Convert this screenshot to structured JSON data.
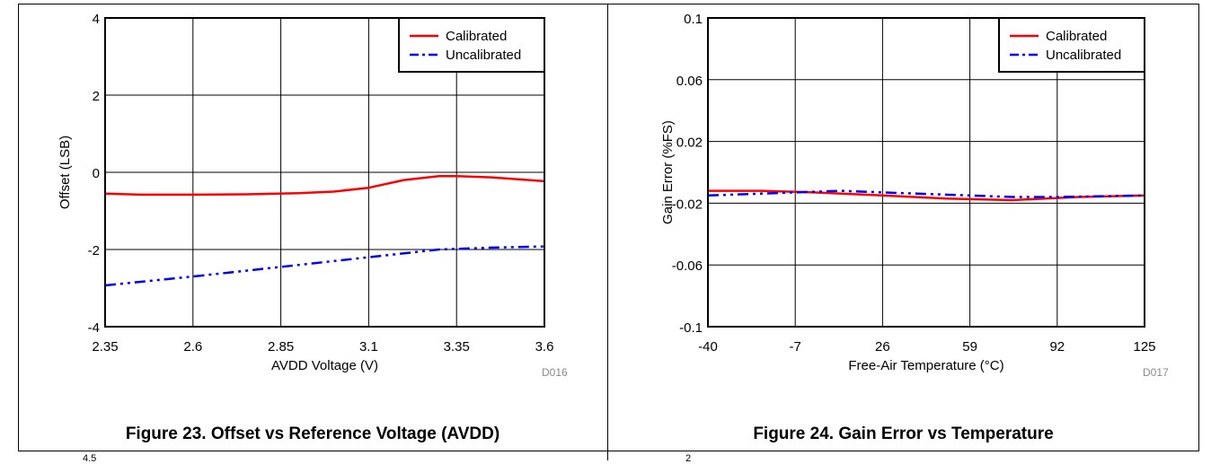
{
  "charts": [
    {
      "code": "D016",
      "caption": "Figure 23. Offset vs Reference Voltage (AVDD)",
      "legend_placement": "top-right",
      "chart_data": {
        "type": "line",
        "xlabel": "AVDD Voltage (V)",
        "ylabel": "Offset (LSB)",
        "xlim": [
          2.35,
          3.6
        ],
        "ylim": [
          -4,
          4
        ],
        "xticks": [
          "2.35",
          "2.6",
          "2.85",
          "3.1",
          "3.35",
          "3.6"
        ],
        "yticks": [
          "-4",
          "-2",
          "0",
          "2",
          "4"
        ],
        "grid": true,
        "series": [
          {
            "name": "Calibrated",
            "color": "#ff0000",
            "style": "solid",
            "x": [
              2.35,
              2.45,
              2.6,
              2.75,
              2.9,
              3.0,
              3.1,
              3.2,
              3.3,
              3.35,
              3.45,
              3.6
            ],
            "y": [
              -0.55,
              -0.58,
              -0.58,
              -0.57,
              -0.54,
              -0.5,
              -0.4,
              -0.2,
              -0.1,
              -0.1,
              -0.13,
              -0.23
            ]
          },
          {
            "name": "Uncalibrated",
            "color": "#0000ff",
            "style": "dashdot",
            "x": [
              2.35,
              2.6,
              2.85,
              3.1,
              3.3,
              3.45,
              3.6
            ],
            "y": [
              -2.93,
              -2.7,
              -2.45,
              -2.2,
              -2.0,
              -1.95,
              -1.92
            ]
          }
        ]
      }
    },
    {
      "code": "D017",
      "caption": "Figure 24. Gain Error vs Temperature",
      "legend_placement": "top-right",
      "chart_data": {
        "type": "line",
        "xlabel": "Free-Air Temperature (°C)",
        "ylabel": "Gain Error (%FS)",
        "xlim": [
          -40,
          125
        ],
        "ylim": [
          -0.1,
          0.1
        ],
        "xticks": [
          "-40",
          "-7",
          "26",
          "59",
          "92",
          "125"
        ],
        "yticks": [
          "-0.1",
          "-0.06",
          "-0.02",
          "0.02",
          "0.06",
          "0.1"
        ],
        "grid": true,
        "series": [
          {
            "name": "Calibrated",
            "color": "#ff0000",
            "style": "solid",
            "x": [
              -40,
              -20,
              0,
              26,
              50,
              75,
              100,
              125
            ],
            "y": [
              -0.012,
              -0.012,
              -0.013,
              -0.015,
              -0.017,
              -0.018,
              -0.016,
              -0.015
            ]
          },
          {
            "name": "Uncalibrated",
            "color": "#0000ff",
            "style": "dashdot",
            "x": [
              -40,
              -7,
              10,
              26,
              59,
              75,
              92,
              125
            ],
            "y": [
              -0.015,
              -0.013,
              -0.012,
              -0.013,
              -0.015,
              -0.016,
              -0.016,
              -0.015
            ]
          }
        ]
      }
    }
  ],
  "bottom_fragments": [
    "4.5",
    "2"
  ]
}
